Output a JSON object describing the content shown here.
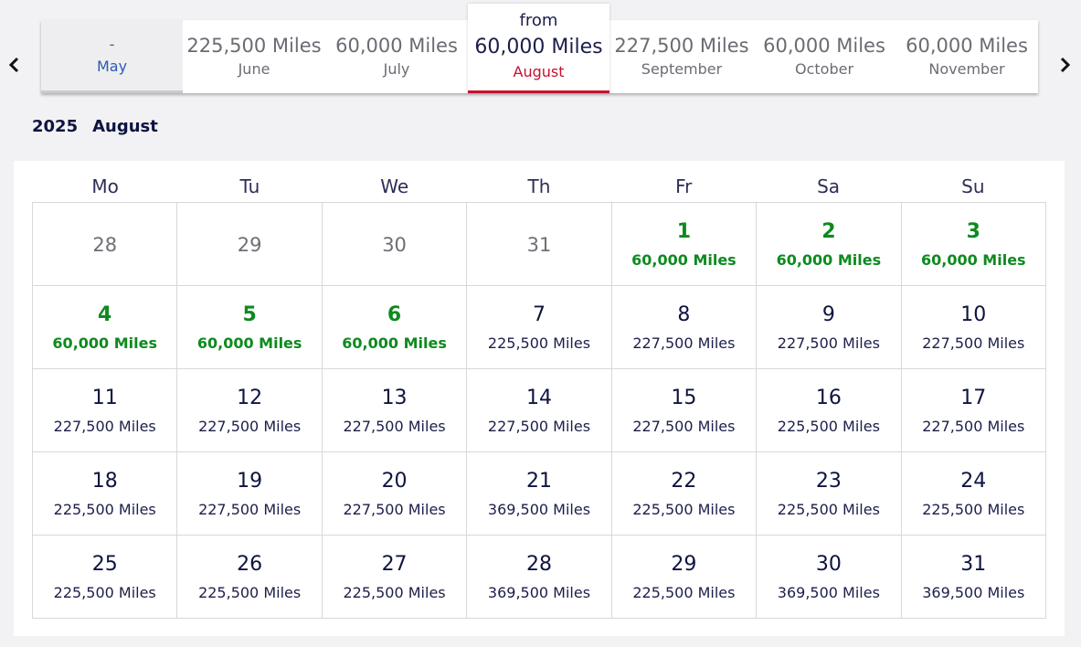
{
  "nav": {
    "prev_icon": "chevron-left-icon",
    "next_icon": "chevron-right-icon"
  },
  "months": [
    {
      "price": "-",
      "name": "May",
      "state": "empty"
    },
    {
      "price": "225,500 Miles",
      "name": "June"
    },
    {
      "price": "60,000 Miles",
      "name": "July"
    },
    {
      "price": "60,000 Miles",
      "name": "August",
      "prefix": "from",
      "state": "selected"
    },
    {
      "price": "227,500 Miles",
      "name": "September"
    },
    {
      "price": "60,000 Miles",
      "name": "October"
    },
    {
      "price": "60,000 Miles",
      "name": "November"
    }
  ],
  "period": {
    "year": "2025",
    "month": "August"
  },
  "weekdays": [
    "Mo",
    "Tu",
    "We",
    "Th",
    "Fr",
    "Sa",
    "Su"
  ],
  "colors": {
    "low_fare": "#0e8a1f",
    "selected_accent": "#c8102e",
    "text": "#0d1440"
  },
  "days": [
    {
      "day": "28",
      "miles": "",
      "type": "outside"
    },
    {
      "day": "29",
      "miles": "",
      "type": "outside"
    },
    {
      "day": "30",
      "miles": "",
      "type": "outside"
    },
    {
      "day": "31",
      "miles": "",
      "type": "outside"
    },
    {
      "day": "1",
      "miles": "60,000 Miles",
      "type": "low"
    },
    {
      "day": "2",
      "miles": "60,000 Miles",
      "type": "low"
    },
    {
      "day": "3",
      "miles": "60,000 Miles",
      "type": "low"
    },
    {
      "day": "4",
      "miles": "60,000 Miles",
      "type": "low"
    },
    {
      "day": "5",
      "miles": "60,000 Miles",
      "type": "low"
    },
    {
      "day": "6",
      "miles": "60,000 Miles",
      "type": "low"
    },
    {
      "day": "7",
      "miles": "225,500 Miles",
      "type": "normal"
    },
    {
      "day": "8",
      "miles": "227,500 Miles",
      "type": "normal"
    },
    {
      "day": "9",
      "miles": "227,500 Miles",
      "type": "normal"
    },
    {
      "day": "10",
      "miles": "227,500 Miles",
      "type": "normal"
    },
    {
      "day": "11",
      "miles": "227,500 Miles",
      "type": "normal"
    },
    {
      "day": "12",
      "miles": "227,500 Miles",
      "type": "normal"
    },
    {
      "day": "13",
      "miles": "227,500 Miles",
      "type": "normal"
    },
    {
      "day": "14",
      "miles": "227,500 Miles",
      "type": "normal"
    },
    {
      "day": "15",
      "miles": "227,500 Miles",
      "type": "normal"
    },
    {
      "day": "16",
      "miles": "225,500 Miles",
      "type": "normal"
    },
    {
      "day": "17",
      "miles": "227,500 Miles",
      "type": "normal"
    },
    {
      "day": "18",
      "miles": "225,500 Miles",
      "type": "normal"
    },
    {
      "day": "19",
      "miles": "227,500 Miles",
      "type": "normal"
    },
    {
      "day": "20",
      "miles": "227,500 Miles",
      "type": "normal"
    },
    {
      "day": "21",
      "miles": "369,500 Miles",
      "type": "normal"
    },
    {
      "day": "22",
      "miles": "225,500 Miles",
      "type": "normal"
    },
    {
      "day": "23",
      "miles": "225,500 Miles",
      "type": "normal"
    },
    {
      "day": "24",
      "miles": "225,500 Miles",
      "type": "normal"
    },
    {
      "day": "25",
      "miles": "225,500 Miles",
      "type": "normal"
    },
    {
      "day": "26",
      "miles": "225,500 Miles",
      "type": "normal"
    },
    {
      "day": "27",
      "miles": "225,500 Miles",
      "type": "normal"
    },
    {
      "day": "28",
      "miles": "369,500 Miles",
      "type": "normal"
    },
    {
      "day": "29",
      "miles": "225,500 Miles",
      "type": "normal"
    },
    {
      "day": "30",
      "miles": "369,500 Miles",
      "type": "normal"
    },
    {
      "day": "31",
      "miles": "369,500 Miles",
      "type": "normal"
    }
  ]
}
